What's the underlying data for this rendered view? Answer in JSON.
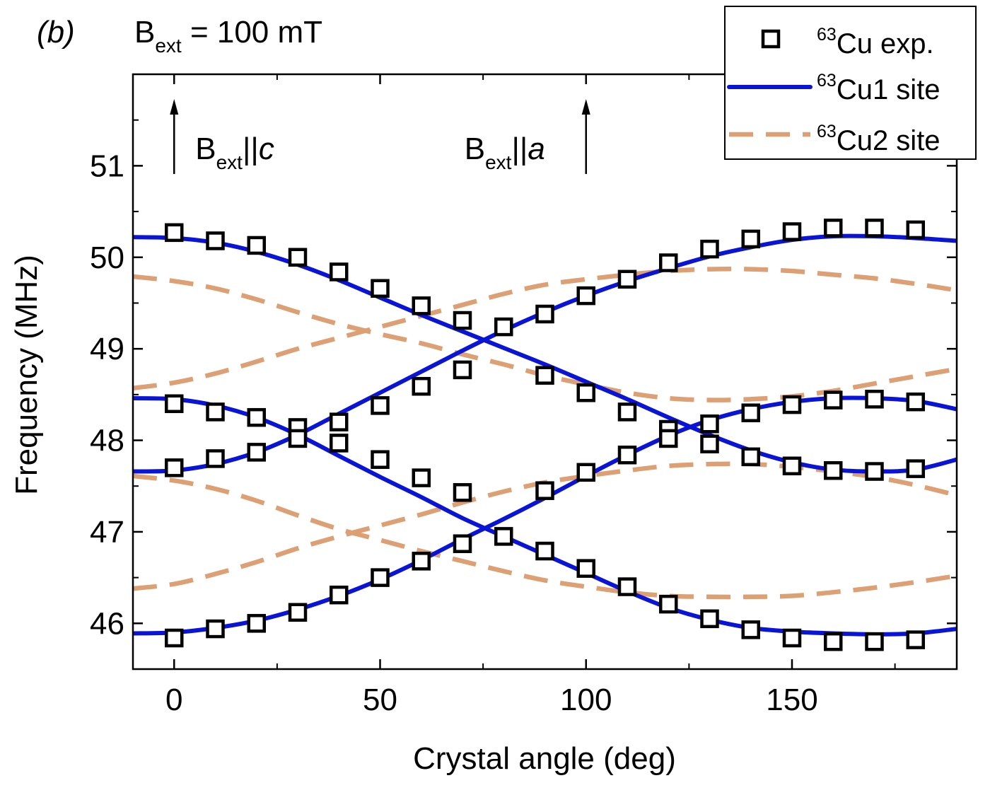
{
  "chart_data": {
    "type": "scatter",
    "panel_label": "(b)",
    "field_label": {
      "symbol": "B",
      "subscript": "ext",
      "rest": " = 100 mT"
    },
    "xlabel": "Crystal angle (deg)",
    "ylabel": "Frequency (MHz)",
    "xlim": [
      -10,
      190
    ],
    "ylim": [
      45.5,
      52.0
    ],
    "x_ticks": [
      0,
      50,
      100,
      150
    ],
    "y_ticks": [
      46,
      47,
      48,
      49,
      50,
      51
    ],
    "x_tick_labels": [
      "0",
      "50",
      "100",
      "150"
    ],
    "y_tick_labels": [
      "46",
      "47",
      "48",
      "49",
      "50",
      "51"
    ],
    "x_minor_ticks": [
      25,
      75,
      125,
      175
    ],
    "y_minor_ticks": [
      45.5,
      46.5,
      47.5,
      48.5,
      49.5,
      50.5,
      51.5
    ],
    "grid": false,
    "legend_position": "top-right",
    "legend": [
      {
        "sup": "63",
        "text": "Cu exp.",
        "style": "square"
      },
      {
        "sup": "63",
        "text": "Cu1 site",
        "style": "solid"
      },
      {
        "sup": "63",
        "text": "Cu2 site",
        "style": "dashed"
      }
    ],
    "colors": {
      "cu1": "#0a14d6",
      "cu2": "#dca074",
      "exp": "#000000"
    },
    "annotations": [
      {
        "x": 0,
        "symbol": "B",
        "sub": "ext",
        "sep": "||",
        "axis": "c"
      },
      {
        "x": 100,
        "symbol": "B",
        "sub": "ext",
        "sep": "||",
        "axis": "a"
      }
    ],
    "series": [
      {
        "name": "63Cu exp.",
        "style": "square",
        "points": [
          [
            0,
            50.27
          ],
          [
            10,
            50.18
          ],
          [
            20,
            50.13
          ],
          [
            30,
            50.0
          ],
          [
            40,
            49.84
          ],
          [
            50,
            49.66
          ],
          [
            60,
            49.47
          ],
          [
            70,
            49.31
          ],
          [
            80,
            49.24
          ],
          [
            90,
            49.38
          ],
          [
            100,
            49.58
          ],
          [
            110,
            49.76
          ],
          [
            120,
            49.94
          ],
          [
            130,
            50.09
          ],
          [
            140,
            50.2
          ],
          [
            150,
            50.28
          ],
          [
            160,
            50.32
          ],
          [
            170,
            50.32
          ],
          [
            180,
            50.3
          ],
          [
            0,
            48.4
          ],
          [
            10,
            48.31
          ],
          [
            20,
            48.25
          ],
          [
            30,
            48.14
          ],
          [
            40,
            48.2
          ],
          [
            50,
            48.38
          ],
          [
            60,
            48.59
          ],
          [
            70,
            48.77
          ],
          [
            90,
            48.71
          ],
          [
            100,
            48.52
          ],
          [
            110,
            48.31
          ],
          [
            120,
            48.12
          ],
          [
            130,
            48.18
          ],
          [
            140,
            48.3
          ],
          [
            150,
            48.39
          ],
          [
            160,
            48.44
          ],
          [
            170,
            48.45
          ],
          [
            180,
            48.42
          ],
          [
            0,
            47.7
          ],
          [
            10,
            47.8
          ],
          [
            20,
            47.87
          ],
          [
            30,
            48.02
          ],
          [
            40,
            47.97
          ],
          [
            50,
            47.79
          ],
          [
            60,
            47.59
          ],
          [
            70,
            47.43
          ],
          [
            90,
            47.45
          ],
          [
            100,
            47.65
          ],
          [
            110,
            47.84
          ],
          [
            120,
            48.02
          ],
          [
            130,
            47.96
          ],
          [
            140,
            47.82
          ],
          [
            150,
            47.72
          ],
          [
            160,
            47.67
          ],
          [
            170,
            47.66
          ],
          [
            180,
            47.69
          ],
          [
            0,
            45.84
          ],
          [
            10,
            45.94
          ],
          [
            20,
            46.0
          ],
          [
            30,
            46.12
          ],
          [
            40,
            46.31
          ],
          [
            50,
            46.5
          ],
          [
            60,
            46.68
          ],
          [
            70,
            46.87
          ],
          [
            80,
            46.95
          ],
          [
            90,
            46.79
          ],
          [
            100,
            46.6
          ],
          [
            110,
            46.4
          ],
          [
            120,
            46.21
          ],
          [
            130,
            46.05
          ],
          [
            140,
            45.93
          ],
          [
            150,
            45.84
          ],
          [
            160,
            45.8
          ],
          [
            170,
            45.8
          ],
          [
            180,
            45.82
          ]
        ]
      },
      {
        "name": "63Cu1 site",
        "style": "solid",
        "curves": [
          {
            "points": [
              [
                -10,
                50.22
              ],
              [
                0,
                50.21
              ],
              [
                10,
                50.16
              ],
              [
                20,
                50.06
              ],
              [
                30,
                49.92
              ],
              [
                40,
                49.75
              ],
              [
                50,
                49.56
              ],
              [
                60,
                49.37
              ],
              [
                70,
                49.19
              ],
              [
                80,
                49.01
              ],
              [
                90,
                48.83
              ],
              [
                100,
                48.64
              ],
              [
                110,
                48.45
              ],
              [
                120,
                48.25
              ],
              [
                130,
                48.06
              ],
              [
                140,
                47.89
              ],
              [
                150,
                47.76
              ],
              [
                160,
                47.68
              ],
              [
                170,
                47.66
              ],
              [
                180,
                47.68
              ],
              [
                190,
                47.79
              ]
            ]
          },
          {
            "points": [
              [
                -10,
                48.46
              ],
              [
                0,
                48.45
              ],
              [
                10,
                48.38
              ],
              [
                20,
                48.25
              ],
              [
                30,
                48.06
              ],
              [
                40,
                47.83
              ],
              [
                50,
                47.6
              ],
              [
                60,
                47.38
              ],
              [
                70,
                47.15
              ],
              [
                80,
                46.95
              ],
              [
                90,
                46.75
              ],
              [
                100,
                46.55
              ],
              [
                110,
                46.35
              ],
              [
                120,
                46.17
              ],
              [
                130,
                46.04
              ],
              [
                140,
                45.95
              ],
              [
                150,
                45.91
              ],
              [
                160,
                45.89
              ],
              [
                170,
                45.88
              ],
              [
                180,
                45.89
              ],
              [
                190,
                45.94
              ]
            ]
          },
          {
            "points": [
              [
                -10,
                47.66
              ],
              [
                0,
                47.67
              ],
              [
                10,
                47.74
              ],
              [
                20,
                47.87
              ],
              [
                30,
                48.06
              ],
              [
                40,
                48.29
              ],
              [
                50,
                48.52
              ],
              [
                60,
                48.75
              ],
              [
                70,
                48.98
              ],
              [
                80,
                49.2
              ],
              [
                90,
                49.4
              ],
              [
                100,
                49.58
              ],
              [
                110,
                49.74
              ],
              [
                120,
                49.88
              ],
              [
                130,
                50.01
              ],
              [
                140,
                50.11
              ],
              [
                150,
                50.19
              ],
              [
                160,
                50.23
              ],
              [
                170,
                50.23
              ],
              [
                180,
                50.21
              ],
              [
                190,
                50.18
              ]
            ]
          },
          {
            "points": [
              [
                -10,
                45.89
              ],
              [
                0,
                45.9
              ],
              [
                10,
                45.95
              ],
              [
                20,
                46.03
              ],
              [
                30,
                46.15
              ],
              [
                40,
                46.3
              ],
              [
                50,
                46.48
              ],
              [
                60,
                46.69
              ],
              [
                70,
                46.92
              ],
              [
                80,
                47.14
              ],
              [
                90,
                47.37
              ],
              [
                100,
                47.61
              ],
              [
                110,
                47.84
              ],
              [
                120,
                48.05
              ],
              [
                130,
                48.22
              ],
              [
                140,
                48.34
              ],
              [
                150,
                48.42
              ],
              [
                160,
                48.46
              ],
              [
                170,
                48.46
              ],
              [
                180,
                48.43
              ],
              [
                190,
                48.34
              ]
            ]
          }
        ]
      },
      {
        "name": "63Cu2 site",
        "style": "dashed",
        "curves": [
          {
            "points": [
              [
                -10,
                49.79
              ],
              [
                0,
                49.74
              ],
              [
                10,
                49.66
              ],
              [
                20,
                49.54
              ],
              [
                30,
                49.4
              ],
              [
                40,
                49.27
              ],
              [
                50,
                49.16
              ],
              [
                60,
                49.06
              ],
              [
                70,
                48.94
              ],
              [
                80,
                48.83
              ],
              [
                90,
                48.71
              ],
              [
                100,
                48.61
              ],
              [
                110,
                48.52
              ],
              [
                120,
                48.46
              ],
              [
                130,
                48.44
              ],
              [
                140,
                48.45
              ],
              [
                150,
                48.48
              ],
              [
                160,
                48.54
              ],
              [
                170,
                48.62
              ],
              [
                180,
                48.7
              ],
              [
                190,
                48.78
              ]
            ]
          },
          {
            "points": [
              [
                -10,
                48.57
              ],
              [
                0,
                48.63
              ],
              [
                10,
                48.73
              ],
              [
                20,
                48.86
              ],
              [
                30,
                49.0
              ],
              [
                40,
                49.12
              ],
              [
                50,
                49.24
              ],
              [
                60,
                49.36
              ],
              [
                70,
                49.48
              ],
              [
                80,
                49.6
              ],
              [
                90,
                49.7
              ],
              [
                100,
                49.76
              ],
              [
                110,
                49.81
              ],
              [
                120,
                49.85
              ],
              [
                130,
                49.87
              ],
              [
                140,
                49.87
              ],
              [
                150,
                49.85
              ],
              [
                160,
                49.81
              ],
              [
                170,
                49.77
              ],
              [
                180,
                49.71
              ],
              [
                190,
                49.64
              ]
            ]
          },
          {
            "points": [
              [
                -10,
                47.61
              ],
              [
                0,
                47.56
              ],
              [
                10,
                47.47
              ],
              [
                20,
                47.34
              ],
              [
                30,
                47.18
              ],
              [
                40,
                47.03
              ],
              [
                50,
                46.91
              ],
              [
                60,
                46.79
              ],
              [
                70,
                46.68
              ],
              [
                80,
                46.57
              ],
              [
                90,
                46.47
              ],
              [
                100,
                46.4
              ],
              [
                110,
                46.34
              ],
              [
                120,
                46.3
              ],
              [
                130,
                46.29
              ],
              [
                140,
                46.29
              ],
              [
                150,
                46.3
              ],
              [
                160,
                46.34
              ],
              [
                170,
                46.39
              ],
              [
                180,
                46.45
              ],
              [
                190,
                46.52
              ]
            ]
          },
          {
            "points": [
              [
                -10,
                46.38
              ],
              [
                0,
                46.43
              ],
              [
                10,
                46.54
              ],
              [
                20,
                46.67
              ],
              [
                30,
                46.82
              ],
              [
                40,
                46.95
              ],
              [
                50,
                47.07
              ],
              [
                60,
                47.19
              ],
              [
                70,
                47.32
              ],
              [
                80,
                47.44
              ],
              [
                90,
                47.54
              ],
              [
                100,
                47.61
              ],
              [
                110,
                47.67
              ],
              [
                120,
                47.72
              ],
              [
                130,
                47.74
              ],
              [
                140,
                47.74
              ],
              [
                150,
                47.71
              ],
              [
                160,
                47.66
              ],
              [
                170,
                47.6
              ],
              [
                180,
                47.51
              ],
              [
                190,
                47.4
              ]
            ]
          }
        ]
      }
    ]
  }
}
